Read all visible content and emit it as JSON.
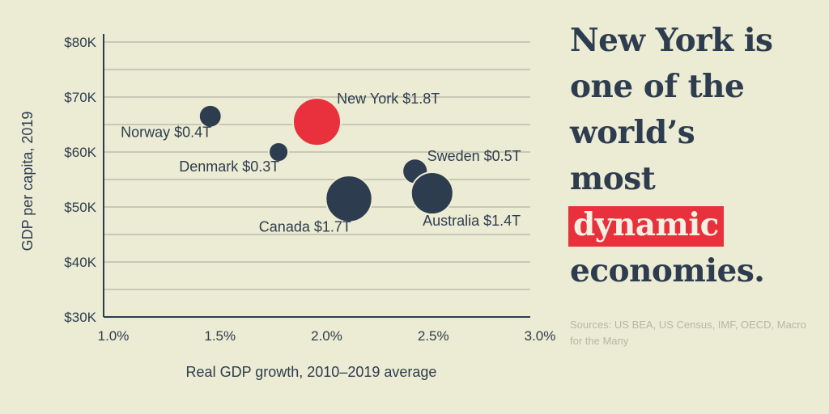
{
  "headline": {
    "line1": "New York is",
    "line2": "one of the",
    "line3": "world’s",
    "line4": "most",
    "highlight": "dynamic",
    "line6": "economies."
  },
  "sources": "Sources: US BEA, US Census, IMF, OECD, Macro for the Many",
  "colors": {
    "background": "#ecebd3",
    "primary": "#2d3d4f",
    "highlight": "#e8313c",
    "grid": "#bdbcaa"
  },
  "chart_data": {
    "type": "scatter",
    "xlabel": "Real GDP growth, 2010–2019 average",
    "ylabel": "GDP per capita, 2019",
    "xlim": [
      1.0,
      3.0
    ],
    "ylim": [
      30,
      80
    ],
    "xticks": [
      1.0,
      1.5,
      2.0,
      2.5,
      3.0
    ],
    "xtick_labels": [
      "1.0%",
      "1.5%",
      "2.0%",
      "2.5%",
      "3.0%"
    ],
    "yticks": [
      30,
      40,
      50,
      60,
      70,
      80
    ],
    "ytick_labels": [
      "$30K",
      "$40K",
      "$50K",
      "$60K",
      "$70K",
      "$80K"
    ],
    "grid": true,
    "points": [
      {
        "label": "Norway $0.4T",
        "x": 1.5,
        "y": 66.5,
        "gdp_trillions": 0.4,
        "color": "#2d3d4f",
        "label_pos": "below-left"
      },
      {
        "label": "New York $1.8T",
        "x": 2.0,
        "y": 65.5,
        "gdp_trillions": 1.8,
        "color": "#e8313c",
        "label_pos": "upper-right"
      },
      {
        "label": "Denmark $0.3T",
        "x": 1.82,
        "y": 60.0,
        "gdp_trillions": 0.3,
        "color": "#2d3d4f",
        "label_pos": "below-left"
      },
      {
        "label": "Sweden $0.5T",
        "x": 2.46,
        "y": 56.5,
        "gdp_trillions": 0.5,
        "color": "#2d3d4f",
        "label_pos": "upper-right"
      },
      {
        "label": "Canada $1.7T",
        "x": 2.15,
        "y": 51.5,
        "gdp_trillions": 1.7,
        "color": "#2d3d4f",
        "label_pos": "below-left"
      },
      {
        "label": "Australia $1.4T",
        "x": 2.54,
        "y": 52.5,
        "gdp_trillions": 1.4,
        "color": "#2d3d4f",
        "label_pos": "below-right"
      }
    ]
  }
}
